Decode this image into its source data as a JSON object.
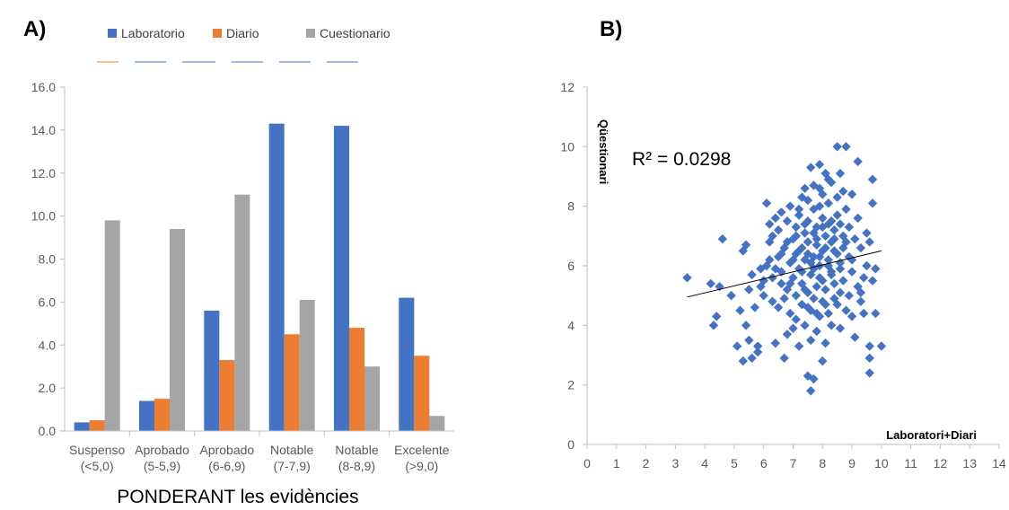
{
  "figure": {
    "panel_a_label": "A)",
    "panel_b_label": "B)"
  },
  "chart_data": [
    {
      "type": "bar",
      "categories": [
        [
          "Suspenso",
          "(<5,0)"
        ],
        [
          "Aprobado",
          "(5-5,9)"
        ],
        [
          "Aprobado",
          "(6-6,9)"
        ],
        [
          "Notable",
          "(7-7,9)"
        ],
        [
          "Notable",
          "(8-8,9)"
        ],
        [
          "Excelente",
          "(>9,0)"
        ]
      ],
      "series": [
        {
          "name": "Laboratorio",
          "color": "#4472C4",
          "values": [
            0.4,
            1.4,
            5.6,
            14.3,
            14.2,
            6.2
          ]
        },
        {
          "name": "Diario",
          "color": "#ED7D31",
          "values": [
            0.5,
            1.5,
            3.3,
            4.5,
            4.8,
            3.5
          ]
        },
        {
          "name": "Cuestionario",
          "color": "#A5A5A5",
          "values": [
            9.8,
            9.4,
            11.0,
            6.1,
            3.0,
            0.7
          ]
        }
      ],
      "ylim": [
        0,
        16
      ],
      "yticks": [
        "0.0",
        "2.0",
        "4.0",
        "6.0",
        "8.0",
        "10.0",
        "12.0",
        "14.0",
        "16.0"
      ],
      "xlabel": "PONDERANT les evidències",
      "ylabel": "",
      "title": "",
      "legend_position": "top",
      "grid": false
    },
    {
      "type": "scatter",
      "xlabel": "Laboratori+Diari",
      "ylabel": "Qüestionari",
      "xlim": [
        0,
        14
      ],
      "ylim": [
        0,
        12
      ],
      "xticks": [
        "0",
        "1",
        "2",
        "3",
        "4",
        "5",
        "6",
        "7",
        "8",
        "9",
        "10",
        "11",
        "12",
        "13",
        "14"
      ],
      "yticks": [
        "0",
        "2",
        "4",
        "6",
        "8",
        "10",
        "12"
      ],
      "marker_color": "#4472C4",
      "annotation": "R² = 0.0298",
      "trendline": {
        "x": [
          3.4,
          10.0
        ],
        "y": [
          4.95,
          6.5
        ],
        "color": "#000000"
      },
      "grid": false,
      "points": [
        [
          3.4,
          5.6
        ],
        [
          4.2,
          5.4
        ],
        [
          4.3,
          4.0
        ],
        [
          4.4,
          4.3
        ],
        [
          4.6,
          6.9
        ],
        [
          4.5,
          5.3
        ],
        [
          4.9,
          5.0
        ],
        [
          5.1,
          3.3
        ],
        [
          5.2,
          4.5
        ],
        [
          5.3,
          2.8
        ],
        [
          5.3,
          6.5
        ],
        [
          5.4,
          6.7
        ],
        [
          5.4,
          4.0
        ],
        [
          5.5,
          3.5
        ],
        [
          5.5,
          5.2
        ],
        [
          5.6,
          2.9
        ],
        [
          5.6,
          5.7
        ],
        [
          5.7,
          4.6
        ],
        [
          5.8,
          3.1
        ],
        [
          5.8,
          3.3
        ],
        [
          5.9,
          5.3
        ],
        [
          5.9,
          5.9
        ],
        [
          6.0,
          5.5
        ],
        [
          6.0,
          5.0
        ],
        [
          6.1,
          8.1
        ],
        [
          6.1,
          6.0
        ],
        [
          6.2,
          6.8
        ],
        [
          6.2,
          7.4
        ],
        [
          6.3,
          4.8
        ],
        [
          6.3,
          5.6
        ],
        [
          6.3,
          7.0
        ],
        [
          6.4,
          7.6
        ],
        [
          6.4,
          3.4
        ],
        [
          6.5,
          6.3
        ],
        [
          6.5,
          4.6
        ],
        [
          6.5,
          7.2
        ],
        [
          6.6,
          5.8
        ],
        [
          6.6,
          7.8
        ],
        [
          6.7,
          2.9
        ],
        [
          6.7,
          4.9
        ],
        [
          6.7,
          6.6
        ],
        [
          6.8,
          3.7
        ],
        [
          6.8,
          5.2
        ],
        [
          6.8,
          7.5
        ],
        [
          6.9,
          6.1
        ],
        [
          6.9,
          4.4
        ],
        [
          6.9,
          8.0
        ],
        [
          7.0,
          5.6
        ],
        [
          7.0,
          6.9
        ],
        [
          7.0,
          3.9
        ],
        [
          7.1,
          7.3
        ],
        [
          7.1,
          5.0
        ],
        [
          7.1,
          6.4
        ],
        [
          7.1,
          4.2
        ],
        [
          7.2,
          7.7
        ],
        [
          7.2,
          5.9
        ],
        [
          7.2,
          3.3
        ],
        [
          7.3,
          6.6
        ],
        [
          7.3,
          8.3
        ],
        [
          7.3,
          4.7
        ],
        [
          7.3,
          5.4
        ],
        [
          7.4,
          7.1
        ],
        [
          7.4,
          6.2
        ],
        [
          7.4,
          4.0
        ],
        [
          7.4,
          8.6
        ],
        [
          7.5,
          2.3
        ],
        [
          7.5,
          5.1
        ],
        [
          7.5,
          6.8
        ],
        [
          7.5,
          7.5
        ],
        [
          7.6,
          9.3
        ],
        [
          7.6,
          4.5
        ],
        [
          7.6,
          5.7
        ],
        [
          7.6,
          3.5
        ],
        [
          7.6,
          1.8
        ],
        [
          7.7,
          6.3
        ],
        [
          7.7,
          7.9
        ],
        [
          7.7,
          4.9
        ],
        [
          7.7,
          8.7
        ],
        [
          7.7,
          2.2
        ],
        [
          7.8,
          5.3
        ],
        [
          7.8,
          6.9
        ],
        [
          7.8,
          7.3
        ],
        [
          7.8,
          3.8
        ],
        [
          7.9,
          8.0
        ],
        [
          7.9,
          6.0
        ],
        [
          7.9,
          4.3
        ],
        [
          7.9,
          9.4
        ],
        [
          7.9,
          5.6
        ],
        [
          8.0,
          7.6
        ],
        [
          8.0,
          2.8
        ],
        [
          8.0,
          6.5
        ],
        [
          8.0,
          8.4
        ],
        [
          8.0,
          4.8
        ],
        [
          8.1,
          7.0
        ],
        [
          8.1,
          5.2
        ],
        [
          8.1,
          9.1
        ],
        [
          8.1,
          3.4
        ],
        [
          8.2,
          6.2
        ],
        [
          8.2,
          8.1
        ],
        [
          8.2,
          4.4
        ],
        [
          8.2,
          7.4
        ],
        [
          8.3,
          5.8
        ],
        [
          8.3,
          6.8
        ],
        [
          8.3,
          8.8
        ],
        [
          8.3,
          4.0
        ],
        [
          8.4,
          7.2
        ],
        [
          8.4,
          5.4
        ],
        [
          8.4,
          6.5
        ],
        [
          8.5,
          8.3
        ],
        [
          8.5,
          4.7
        ],
        [
          8.5,
          7.7
        ],
        [
          8.5,
          10.0
        ],
        [
          8.6,
          6.1
        ],
        [
          8.6,
          5.1
        ],
        [
          8.6,
          9.1
        ],
        [
          8.6,
          3.9
        ],
        [
          8.7,
          7.0
        ],
        [
          8.7,
          6.6
        ],
        [
          8.7,
          5.5
        ],
        [
          8.8,
          10.0
        ],
        [
          8.8,
          4.5
        ],
        [
          8.8,
          7.9
        ],
        [
          8.9,
          6.3
        ],
        [
          8.9,
          5.0
        ],
        [
          8.9,
          7.3
        ],
        [
          9.0,
          4.3
        ],
        [
          9.0,
          8.4
        ],
        [
          9.0,
          5.8
        ],
        [
          9.1,
          6.9
        ],
        [
          9.1,
          3.6
        ],
        [
          9.2,
          9.5
        ],
        [
          9.2,
          5.3
        ],
        [
          9.2,
          7.6
        ],
        [
          9.3,
          4.8
        ],
        [
          9.3,
          6.6
        ],
        [
          9.4,
          5.6
        ],
        [
          9.4,
          4.4
        ],
        [
          9.5,
          7.1
        ],
        [
          9.5,
          6.0
        ],
        [
          9.6,
          3.3
        ],
        [
          9.6,
          6.8
        ],
        [
          9.6,
          2.4
        ],
        [
          9.6,
          2.9
        ],
        [
          9.7,
          8.9
        ],
        [
          9.7,
          5.5
        ],
        [
          9.7,
          8.1
        ],
        [
          9.8,
          4.4
        ],
        [
          9.8,
          5.9
        ],
        [
          10.0,
          3.3
        ],
        [
          7.2,
          6.5
        ],
        [
          7.5,
          6.4
        ],
        [
          7.8,
          6.7
        ],
        [
          8.1,
          6.6
        ],
        [
          8.4,
          6.9
        ],
        [
          7.0,
          6.2
        ],
        [
          7.3,
          5.8
        ],
        [
          7.6,
          6.1
        ],
        [
          7.9,
          6.3
        ],
        [
          8.2,
          6.0
        ],
        [
          8.5,
          6.4
        ],
        [
          6.9,
          5.4
        ],
        [
          7.4,
          5.2
        ],
        [
          7.7,
          5.9
        ],
        [
          8.0,
          5.5
        ],
        [
          8.3,
          5.7
        ],
        [
          8.6,
          5.9
        ],
        [
          7.1,
          7.0
        ],
        [
          7.4,
          7.4
        ],
        [
          7.7,
          7.1
        ],
        [
          8.0,
          7.3
        ],
        [
          8.3,
          7.5
        ],
        [
          8.6,
          7.4
        ],
        [
          7.5,
          4.6
        ],
        [
          7.8,
          4.4
        ],
        [
          8.1,
          4.7
        ],
        [
          8.4,
          4.9
        ],
        [
          6.6,
          6.4
        ],
        [
          6.8,
          6.8
        ],
        [
          7.2,
          7.9
        ],
        [
          7.5,
          8.2
        ],
        [
          7.9,
          8.6
        ],
        [
          8.2,
          8.9
        ],
        [
          8.7,
          8.5
        ],
        [
          6.4,
          5.9
        ],
        [
          6.6,
          5.4
        ],
        [
          6.2,
          6.2
        ],
        [
          9.0,
          6.2
        ],
        [
          9.3,
          5.1
        ],
        [
          8.8,
          6.8
        ]
      ]
    }
  ]
}
